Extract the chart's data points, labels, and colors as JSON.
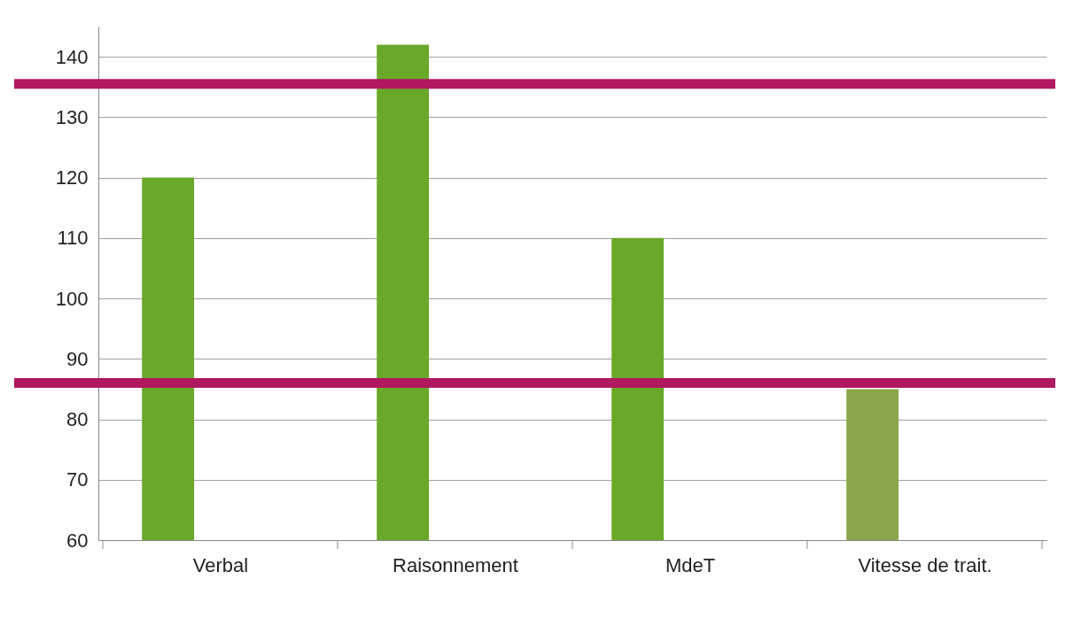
{
  "chart_data": {
    "type": "bar",
    "categories": [
      "Verbal",
      "Raisonnement",
      "MdeT",
      "Vitesse de trait."
    ],
    "values": [
      120,
      142,
      110,
      85
    ],
    "colors": [
      "#6aa829",
      "#6aa829",
      "#6aa829",
      "#8aa64a"
    ],
    "ylim": [
      60,
      145
    ],
    "yticks": [
      60,
      70,
      80,
      90,
      100,
      110,
      120,
      130,
      140
    ],
    "grid": "y",
    "ref_lines": [
      {
        "axis": "y",
        "value": 135.5,
        "color": "#b0185f"
      },
      {
        "axis": "y",
        "value": 86,
        "color": "#b0185f"
      }
    ]
  }
}
